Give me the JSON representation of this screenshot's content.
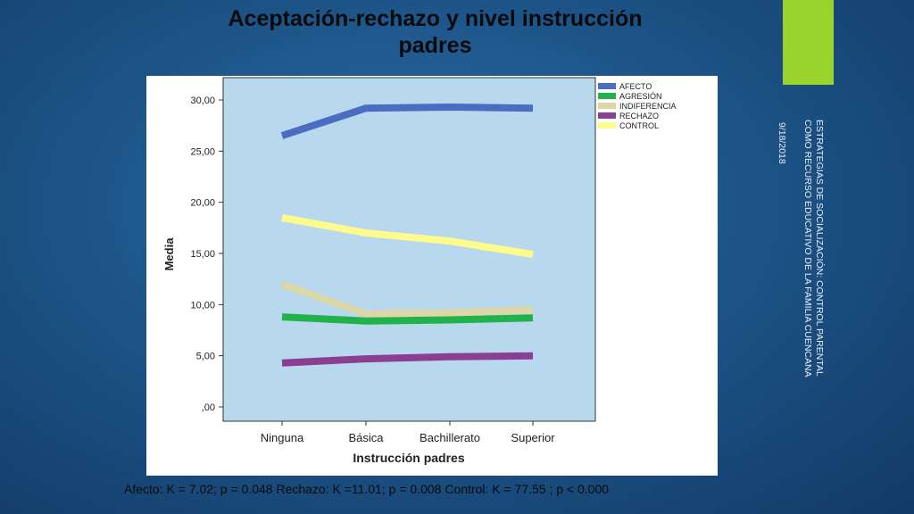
{
  "slide": {
    "title_line1": "Aceptación-rechazo y nivel instrucción",
    "title_line2": "padres",
    "date": "9/18/2018",
    "caption_line1": "ESTRATEGIAS DE SOCIALIZACIÓN: CONTROL PARENTAL",
    "caption_line2": "COMO RECURSO EDUCATIVO DE LA FAMILIA CUENCANA",
    "footer": "Afecto: K = 7.02; p = 0.048  Rechazo: K =11.01; p = 0.008 Control: K = 77.55 ; p < 0.000",
    "accent_color": "#9bd32d"
  },
  "chart_data": {
    "type": "line",
    "categories": [
      "Ninguna",
      "Básica",
      "Bachillerato",
      "Superior"
    ],
    "xlabel": "Instrucción padres",
    "ylabel": "Media",
    "ylim": [
      0,
      30
    ],
    "yticks": [
      ",00",
      "5,00",
      "10,00",
      "15,00",
      "20,00",
      "25,00",
      "30,00"
    ],
    "ytick_values": [
      0,
      5,
      10,
      15,
      20,
      25,
      30
    ],
    "plot_background": "#b8d8ee",
    "legend_position": "top-right",
    "series": [
      {
        "name": "AFECTO",
        "color": "#4a6cc1",
        "values": [
          26.5,
          29.2,
          29.3,
          29.2
        ]
      },
      {
        "name": "AGRESIÓN",
        "color": "#22b24c",
        "values": [
          8.8,
          8.4,
          8.5,
          8.7
        ]
      },
      {
        "name": "INDIFERENCIA",
        "color": "#ddd6a6",
        "values": [
          12.0,
          9.1,
          9.2,
          9.5
        ]
      },
      {
        "name": "RECHAZO",
        "color": "#8a3f93",
        "values": [
          4.3,
          4.7,
          4.9,
          5.0
        ]
      },
      {
        "name": "CONTROL",
        "color": "#fdfb8c",
        "values": [
          18.5,
          17.0,
          16.2,
          14.9
        ]
      }
    ]
  }
}
